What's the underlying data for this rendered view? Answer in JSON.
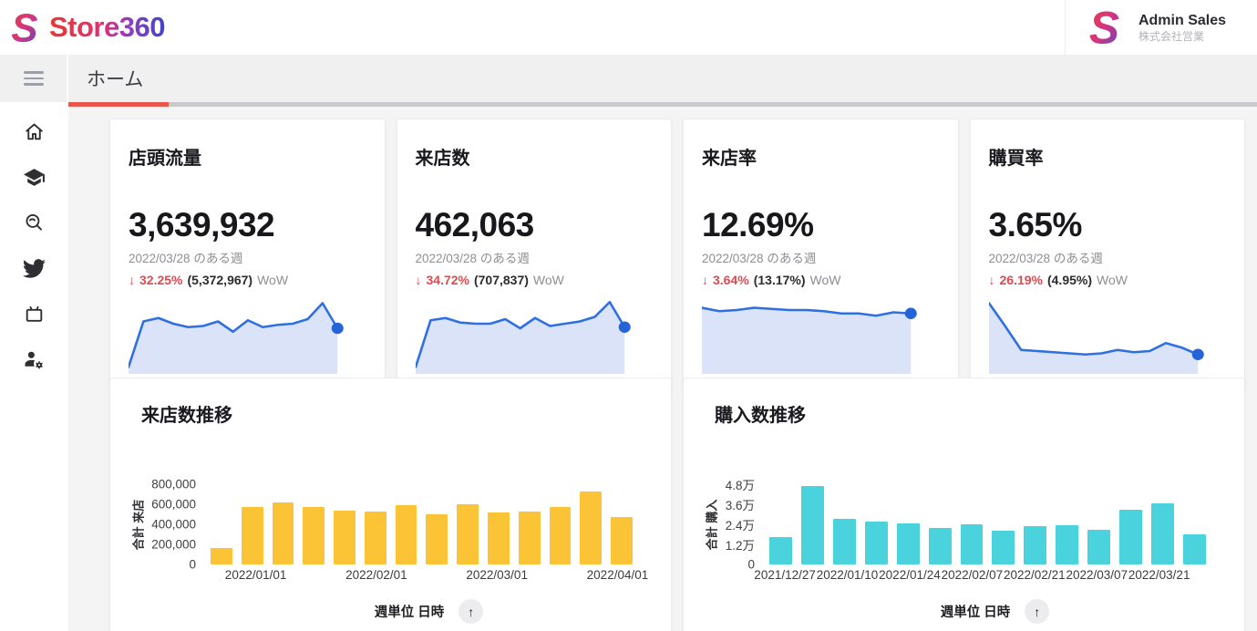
{
  "header": {
    "brand": {
      "name": "Store360"
    },
    "account": {
      "name": "Admin Sales",
      "org": "株式会社営業"
    }
  },
  "toolbar": {
    "tab": "ホーム"
  },
  "sidebar": {
    "items": [
      {
        "icon": "home-icon"
      },
      {
        "icon": "graduation-cap-icon"
      },
      {
        "icon": "search-icon"
      },
      {
        "icon": "twitter-icon"
      },
      {
        "icon": "tv-icon"
      },
      {
        "icon": "user-gear-icon"
      }
    ]
  },
  "colors": {
    "accent_red": "#e9544d",
    "stat_red": "#e2484e",
    "sparkline_line": "#2f6fe4",
    "sparkline_fill": "#dbe3f8",
    "sparkline_dot": "#2563d8",
    "bar_yellow": "#fbc437",
    "bar_teal": "#4ad3dc"
  },
  "kpi_cards": [
    {
      "title": "店頭流量",
      "value": "3,639,932",
      "period": "2022/03/28 のある週",
      "change_arrow": "↓",
      "change_percent": "32.25%",
      "previous_value": "(5,372,967)",
      "change_suffix": "WoW",
      "sparkline": [
        2,
        22,
        23.5,
        21,
        19.5,
        20,
        22,
        17.5,
        22.5,
        19.5,
        20.5,
        21,
        23,
        30,
        19
      ]
    },
    {
      "title": "来店数",
      "value": "462,063",
      "period": "2022/03/28 のある週",
      "change_arrow": "↓",
      "change_percent": "34.72%",
      "previous_value": "(707,837)",
      "change_suffix": "WoW",
      "sparkline": [
        2,
        22.5,
        23.5,
        21.5,
        21,
        21,
        23,
        19,
        23.5,
        20,
        21,
        22,
        24,
        30.5,
        19.5
      ]
    },
    {
      "title": "来店率",
      "value": "12.69%",
      "period": "2022/03/28 のある週",
      "change_arrow": "↓",
      "change_percent": "3.64%",
      "previous_value": "(13.17%)",
      "change_suffix": "WoW",
      "sparkline": [
        28,
        26.5,
        27,
        28,
        27.5,
        27,
        27,
        26.5,
        25.5,
        25.5,
        24.5,
        26,
        25.5
      ]
    },
    {
      "title": "購買率",
      "value": "3.65%",
      "period": "2022/03/28 のある週",
      "change_arrow": "↓",
      "change_percent": "26.19%",
      "previous_value": "(4.95%)",
      "change_suffix": "WoW",
      "sparkline": [
        30,
        20,
        9.5,
        9,
        8.5,
        8,
        7.5,
        8,
        9.5,
        8.5,
        9,
        12.5,
        10.5,
        7.5
      ]
    }
  ],
  "chart_data": [
    {
      "type": "bar",
      "title": "来店数推移",
      "ylabel": "合計 来店",
      "xlabel": "週単位 日時",
      "sort_icon_glyph": "↑",
      "ymax": 800000,
      "y_ticks": [
        "800,000",
        "600,000",
        "400,000",
        "200,000",
        "0"
      ],
      "values": [
        160000,
        570000,
        620000,
        570000,
        540000,
        530000,
        590000,
        500000,
        600000,
        515000,
        525000,
        575000,
        725000,
        475000
      ],
      "x_tick_labels": [
        {
          "index": 1,
          "label": "2022/01/01"
        },
        {
          "index": 5,
          "label": "2022/02/01"
        },
        {
          "index": 9,
          "label": "2022/03/01"
        },
        {
          "index": 13,
          "label": "2022/04/01"
        }
      ],
      "bar_color": "#fbc437",
      "y_tick_width": 62,
      "grid": false,
      "legend": "none"
    },
    {
      "type": "bar",
      "title": "購入数推移",
      "ylabel": "合計 購入",
      "xlabel": "週単位 日時",
      "sort_icon_glyph": "↑",
      "ymax": 48000,
      "y_ticks": [
        "4.8万",
        "3.6万",
        "2.4万",
        "1.2万",
        "0"
      ],
      "values": [
        16500,
        47000,
        27500,
        25500,
        24500,
        22000,
        24000,
        20000,
        23000,
        23500,
        21000,
        33000,
        36500,
        18000
      ],
      "x_tick_labels": [
        {
          "index": 0,
          "label": "2021/12/27"
        },
        {
          "index": 2,
          "label": "2022/01/10"
        },
        {
          "index": 4,
          "label": "2022/01/24"
        },
        {
          "index": 6,
          "label": "2022/02/07"
        },
        {
          "index": 8,
          "label": "2022/02/21"
        },
        {
          "index": 10,
          "label": "2022/03/07"
        },
        {
          "index": 12,
          "label": "2022/03/21"
        }
      ],
      "bar_color": "#4ad3dc",
      "y_tick_width": 46,
      "grid": false,
      "legend": "none"
    }
  ]
}
